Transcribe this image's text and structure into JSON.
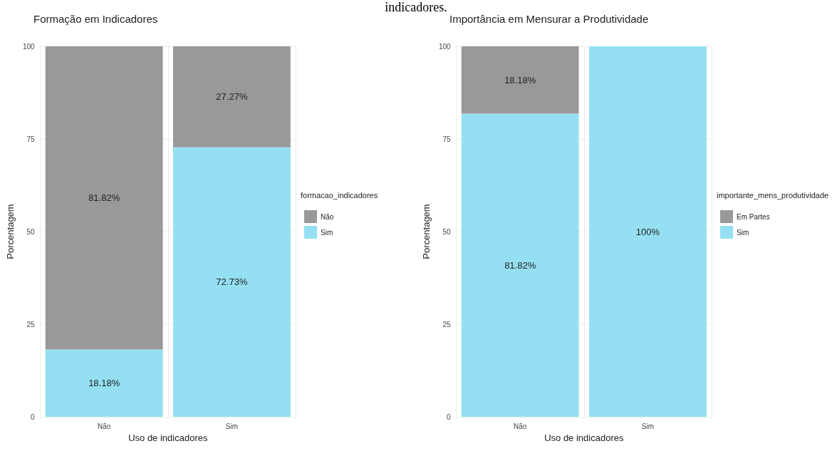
{
  "chart_data": [
    {
      "type": "bar",
      "title": "Formação em Indicadores",
      "xlabel": "Uso de indicadores",
      "ylabel": "Porcentagem",
      "legend_title": "formacao_indicadores",
      "annotations": [
        "indicadores."
      ],
      "categories": [
        "Não",
        "Sim"
      ],
      "stacked": true,
      "series": [
        {
          "name": "Sim",
          "color": "#94e0f2",
          "values": [
            18.18,
            72.73
          ],
          "value_labels": [
            "18.18%",
            "72.73%"
          ]
        },
        {
          "name": "Não",
          "color": "#999999",
          "values": [
            81.82,
            27.27
          ],
          "value_labels": [
            "81.82%",
            "27.27%"
          ]
        }
      ],
      "ylim": [
        0,
        100
      ],
      "yticks": [
        0,
        25,
        50,
        75,
        100
      ],
      "grid": true,
      "legend": "right"
    },
    {
      "type": "bar",
      "title": "Importância em Mensurar a Produtividade",
      "xlabel": "Uso de indicadores",
      "ylabel": "Porcentagem",
      "legend_title": "importante_mens_produtividade",
      "categories": [
        "Não",
        "Sim"
      ],
      "stacked": true,
      "series": [
        {
          "name": "Sim",
          "color": "#94e0f2",
          "values": [
            81.82,
            100
          ],
          "value_labels": [
            "81.82%",
            "100%"
          ]
        },
        {
          "name": "Em Partes",
          "color": "#999999",
          "values": [
            18.18,
            null
          ],
          "value_labels": [
            "18.18%",
            null
          ]
        }
      ],
      "ylim": [
        0,
        100
      ],
      "yticks": [
        0,
        25,
        50,
        75,
        100
      ],
      "grid": true,
      "legend": "right"
    }
  ]
}
